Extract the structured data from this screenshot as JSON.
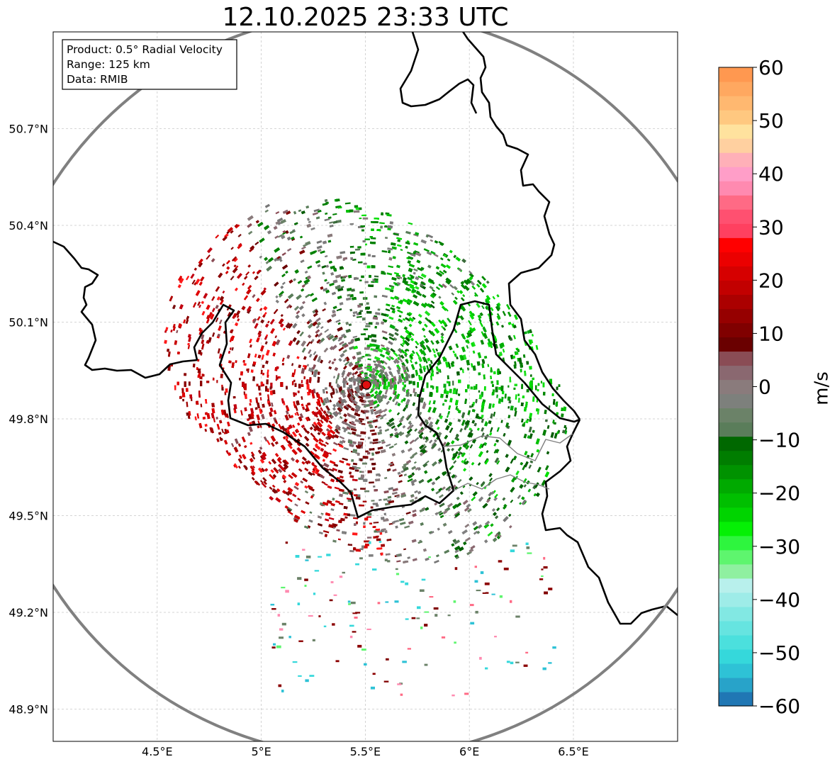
{
  "title": "12.10.2025 23:33 UTC",
  "info_box": {
    "lines": [
      "Product: 0.5° Radial Velocity",
      "Range: 125 km",
      "Data: RMIB"
    ]
  },
  "axes": {
    "lon_ticks": [
      {
        "value": 4.5,
        "label": "4.5°E"
      },
      {
        "value": 5.0,
        "label": "5°E"
      },
      {
        "value": 5.5,
        "label": "5.5°E"
      },
      {
        "value": 6.0,
        "label": "6°E"
      },
      {
        "value": 6.5,
        "label": "6.5°E"
      }
    ],
    "lat_ticks": [
      {
        "value": 50.7,
        "label": "50.7°N"
      },
      {
        "value": 50.4,
        "label": "50.4°N"
      },
      {
        "value": 50.1,
        "label": "50.1°N"
      },
      {
        "value": 49.8,
        "label": "49.8°N"
      },
      {
        "value": 49.5,
        "label": "49.5°N"
      },
      {
        "value": 49.2,
        "label": "49.2°N"
      },
      {
        "value": 48.9,
        "label": "48.9°N"
      }
    ],
    "lon_range": [
      4.0,
      7.0
    ],
    "lat_range": [
      48.8,
      51.0
    ]
  },
  "radar": {
    "site_lon": 5.505,
    "site_lat": 49.914,
    "range_km": 125
  },
  "colorbar": {
    "label": "m/s",
    "min": -60,
    "max": 60,
    "ticks": [
      {
        "value": 60,
        "label": "60"
      },
      {
        "value": 50,
        "label": "50"
      },
      {
        "value": 40,
        "label": "40"
      },
      {
        "value": 30,
        "label": "30"
      },
      {
        "value": 20,
        "label": "20"
      },
      {
        "value": 10,
        "label": "10"
      },
      {
        "value": 0,
        "label": "0"
      },
      {
        "value": -10,
        "label": "−10"
      },
      {
        "value": -20,
        "label": "−20"
      },
      {
        "value": -30,
        "label": "−30"
      },
      {
        "value": -40,
        "label": "−40"
      },
      {
        "value": -50,
        "label": "−50"
      },
      {
        "value": -60,
        "label": "−60"
      }
    ],
    "colors": [
      "#2077b4",
      "#28a3c9",
      "#2ec2d6",
      "#35d8db",
      "#4be0dd",
      "#66e4e0",
      "#82e8e3",
      "#9eece8",
      "#b8f0ec",
      "#8ff0a0",
      "#5ef56e",
      "#2ef53e",
      "#05f005",
      "#00d400",
      "#00bf00",
      "#00aa00",
      "#009200",
      "#007d00",
      "#006800",
      "#5a7d5a",
      "#6b8268",
      "#7d807c",
      "#8a7b7c",
      "#8a6870",
      "#8a4c55",
      "#6a0000",
      "#800000",
      "#960000",
      "#ab0000",
      "#c20000",
      "#d60000",
      "#eb0000",
      "#ff0000",
      "#ff4060",
      "#ff5070",
      "#ff6a85",
      "#ff8ab0",
      "#ff9ec8",
      "#ffb0b8",
      "#ffd0a0",
      "#ffe29e",
      "#ffc880",
      "#ffb870",
      "#ffa860",
      "#ff9850"
    ]
  },
  "colors": {
    "border": "#000000",
    "range_ring": "#808080",
    "grid": "#bfbfbf",
    "site_marker": "#e01010"
  }
}
